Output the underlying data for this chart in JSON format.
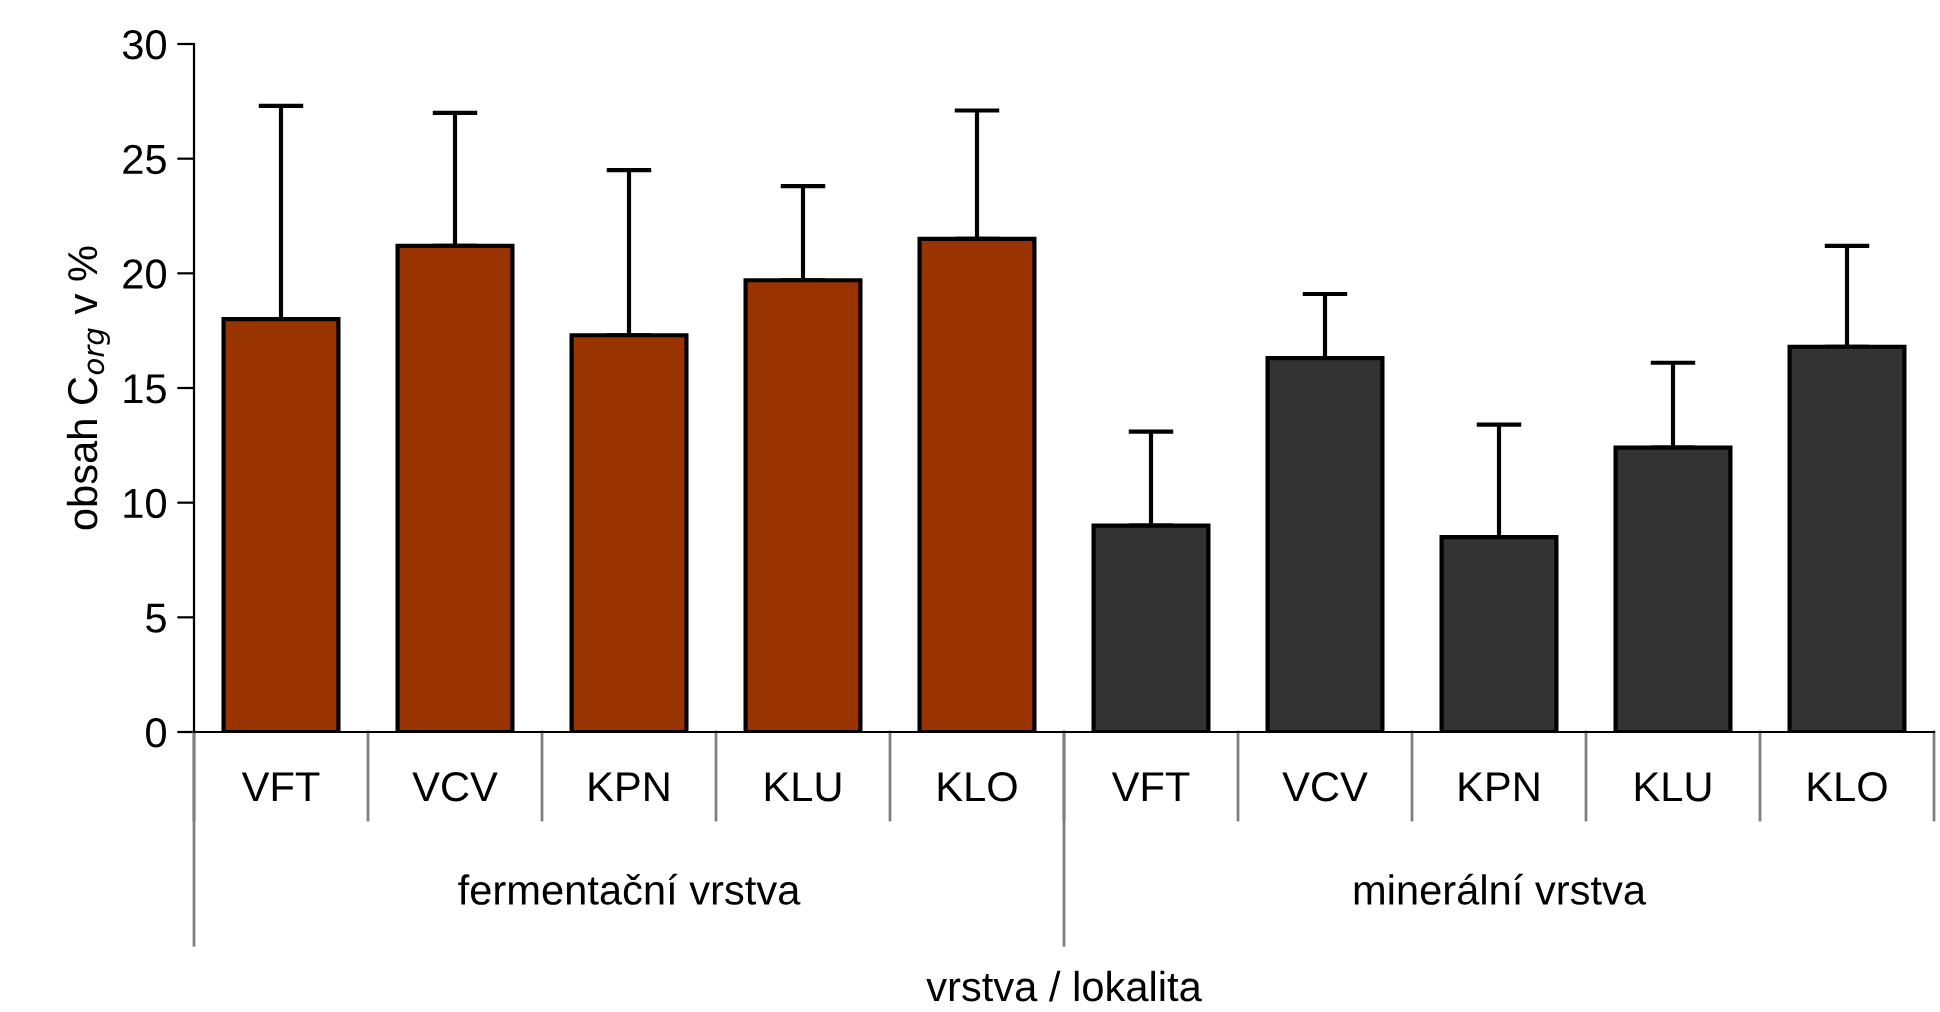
{
  "chart_data": {
    "type": "bar",
    "categories": [
      "VFT",
      "VCV",
      "KPN",
      "KLU",
      "KLO",
      "VFT",
      "VCV",
      "KPN",
      "KLU",
      "KLO"
    ],
    "values": [
      18.0,
      21.2,
      17.3,
      19.7,
      21.5,
      9.0,
      16.3,
      8.5,
      12.4,
      16.8
    ],
    "errors": [
      [
        18.0,
        27.3
      ],
      [
        21.2,
        27.0
      ],
      [
        17.3,
        24.5
      ],
      [
        19.7,
        23.8
      ],
      [
        21.5,
        27.1
      ],
      [
        9.0,
        13.1
      ],
      [
        16.3,
        19.1
      ],
      [
        8.5,
        13.4
      ],
      [
        12.4,
        16.1
      ],
      [
        16.8,
        21.2
      ]
    ],
    "colors": [
      "#993300",
      "#993300",
      "#993300",
      "#993300",
      "#993300",
      "#333333",
      "#333333",
      "#333333",
      "#333333",
      "#333333"
    ],
    "ylim": [
      0,
      30
    ],
    "yticks": [
      0,
      5,
      10,
      15,
      20,
      25,
      30
    ],
    "ylabel": "obsah C$_{org}$ v %",
    "xlabel": "vrstva / lokalita",
    "annotations": [
      "fermentační vrstva",
      "minerální vrstva"
    ],
    "grid": false,
    "legend": false
  }
}
